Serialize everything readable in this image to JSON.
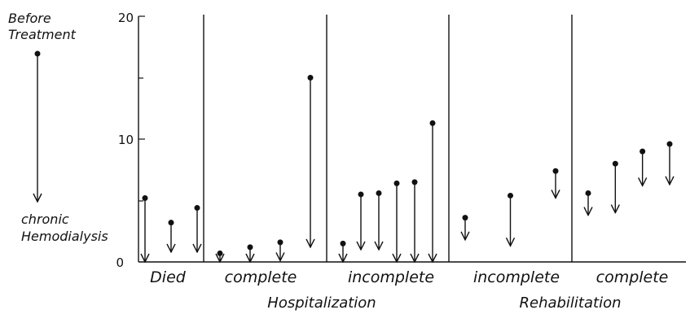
{
  "chart_data": {
    "type": "dot-arrow",
    "ylim": [
      0,
      20
    ],
    "y_ticks": [
      "0",
      "10",
      "20"
    ],
    "legend": {
      "top_label": [
        "Before",
        "Treatment"
      ],
      "bottom_label": [
        "chronic",
        "Hemodialysis"
      ]
    },
    "categories": [
      {
        "label": "Died",
        "points": [
          {
            "before": 5.2,
            "after": 0.0
          },
          {
            "before": 3.2,
            "after": 0.8
          },
          {
            "before": 4.4,
            "after": 0.8
          }
        ]
      },
      {
        "label": "complete",
        "points": [
          {
            "before": 0.7,
            "after": 0.0
          },
          {
            "before": 1.2,
            "after": 0.0
          },
          {
            "before": 1.6,
            "after": 0.1
          },
          {
            "before": 15.0,
            "after": 1.2
          }
        ]
      },
      {
        "label": "incomplete",
        "points": [
          {
            "before": 1.5,
            "after": 0.0
          },
          {
            "before": 5.5,
            "after": 1.0
          },
          {
            "before": 5.6,
            "after": 1.0
          },
          {
            "before": 6.4,
            "after": 0.0
          },
          {
            "before": 6.5,
            "after": 0.0
          },
          {
            "before": 11.3,
            "after": 0.0
          }
        ]
      },
      {
        "label": "incomplete",
        "points": [
          {
            "before": 3.6,
            "after": 1.8
          },
          {
            "before": 5.4,
            "after": 1.3
          },
          {
            "before": 7.4,
            "after": 5.2
          }
        ]
      },
      {
        "label": "complete",
        "points": [
          {
            "before": 5.6,
            "after": 3.8
          },
          {
            "before": 8.0,
            "after": 4.0
          },
          {
            "before": 9.0,
            "after": 6.2
          },
          {
            "before": 9.6,
            "after": 6.3
          }
        ]
      }
    ],
    "groups": [
      {
        "label": "Hospitalization",
        "spans": [
          1,
          2
        ]
      },
      {
        "label": "Rehabilitation",
        "spans": [
          3,
          4
        ]
      }
    ]
  }
}
